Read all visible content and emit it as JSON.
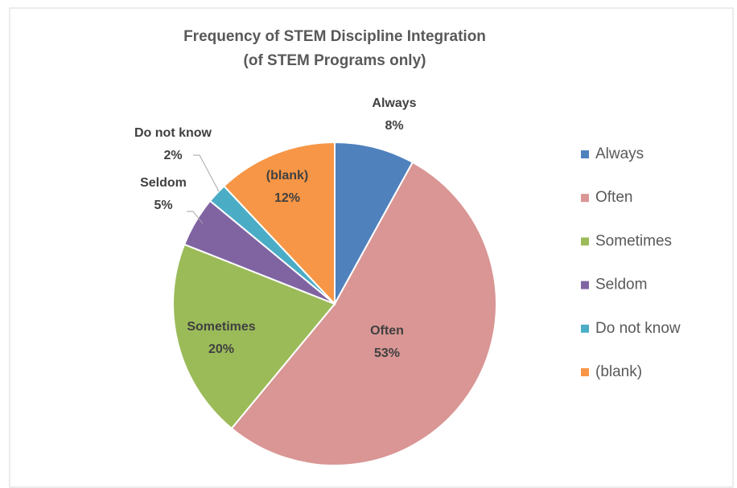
{
  "chart_data": {
    "type": "pie",
    "title": "Frequency of STEM Discipline Integration",
    "subtitle": "(of STEM Programs only)",
    "categories": [
      "Always",
      "Often",
      "Sometimes",
      "Seldom",
      "Do not know",
      "(blank)"
    ],
    "values": [
      8,
      53,
      20,
      5,
      2,
      12
    ],
    "value_labels": [
      "8%",
      "53%",
      "20%",
      "5%",
      "2%",
      "12%"
    ],
    "colors": [
      "#4f81bd",
      "#d99694",
      "#9bbb59",
      "#8064a2",
      "#4bacc6",
      "#f79646"
    ],
    "legend": "right"
  }
}
